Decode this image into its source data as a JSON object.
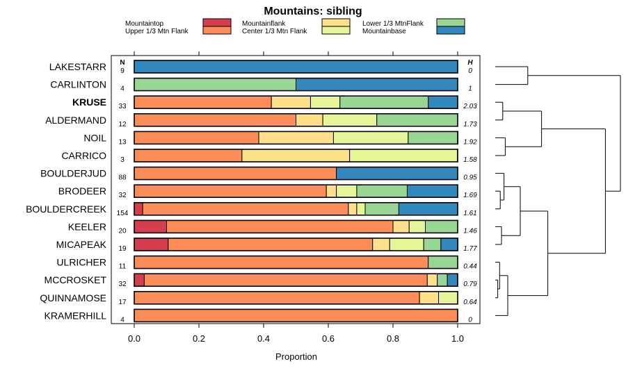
{
  "chart_data": {
    "type": "bar",
    "orientation": "horizontal",
    "stacked": true,
    "title": "Mountains: sibling",
    "xlabel": "Proportion",
    "ylabel": "",
    "xlim": [
      0,
      1
    ],
    "xticks": [
      "0.0",
      "0.2",
      "0.4",
      "0.6",
      "0.8",
      "1.0"
    ],
    "n_header": "N",
    "h_header": "H",
    "legend": [
      {
        "name": "Mountaintop",
        "color": "#d53e4f"
      },
      {
        "name": "Upper 1/3 Mtn Flank",
        "color": "#fc8d59"
      },
      {
        "name": "Mountainflank",
        "color": "#fee08b"
      },
      {
        "name": "Center 1/3 Mtn Flank",
        "color": "#e6f598"
      },
      {
        "name": "Lower 1/3 MtnFlank",
        "color": "#99d594"
      },
      {
        "name": "Mountainbase",
        "color": "#3288bd"
      }
    ],
    "rows": [
      {
        "label": "LAKESTARR",
        "bold": false,
        "n": "9",
        "h": "0",
        "values": [
          0,
          0,
          0,
          0,
          0,
          1.0
        ]
      },
      {
        "label": "CARLINTON",
        "bold": false,
        "n": "4",
        "h": "1",
        "values": [
          0,
          0,
          0,
          0,
          0.5,
          0.5
        ]
      },
      {
        "label": "KRUSE",
        "bold": true,
        "n": "33",
        "h": "2.03",
        "values": [
          0,
          0.424,
          0.121,
          0.091,
          0.273,
          0.091
        ]
      },
      {
        "label": "ALDERMAND",
        "bold": false,
        "n": "12",
        "h": "1.73",
        "values": [
          0,
          0.5,
          0.083,
          0.167,
          0.25,
          0
        ]
      },
      {
        "label": "NOIL",
        "bold": false,
        "n": "13",
        "h": "1.92",
        "values": [
          0,
          0.385,
          0.231,
          0.231,
          0.154,
          0
        ]
      },
      {
        "label": "CARRICO",
        "bold": false,
        "n": "3",
        "h": "1.58",
        "values": [
          0,
          0.333,
          0.333,
          0.333,
          0,
          0
        ]
      },
      {
        "label": "BOULDERJUD",
        "bold": false,
        "n": "88",
        "h": "0.95",
        "values": [
          0,
          0.625,
          0,
          0,
          0,
          0.375
        ]
      },
      {
        "label": "BRODEER",
        "bold": false,
        "n": "32",
        "h": "1.69",
        "values": [
          0,
          0.594,
          0.031,
          0.063,
          0.156,
          0.156
        ]
      },
      {
        "label": "BOULDERCREEK",
        "bold": false,
        "n": "154",
        "h": "1.61",
        "values": [
          0.026,
          0.636,
          0.026,
          0.026,
          0.104,
          0.182
        ]
      },
      {
        "label": "KEELER",
        "bold": false,
        "n": "20",
        "h": "1.46",
        "values": [
          0.1,
          0.7,
          0.05,
          0.05,
          0.1,
          0
        ]
      },
      {
        "label": "MICAPEAK",
        "bold": false,
        "n": "19",
        "h": "1.77",
        "values": [
          0.105,
          0.632,
          0.053,
          0.105,
          0.053,
          0.053
        ]
      },
      {
        "label": "ULRICHER",
        "bold": false,
        "n": "11",
        "h": "0.44",
        "values": [
          0,
          0.909,
          0,
          0,
          0.091,
          0
        ]
      },
      {
        "label": "MCCROSKET",
        "bold": false,
        "n": "32",
        "h": "0.79",
        "values": [
          0.031,
          0.875,
          0.031,
          0,
          0.031,
          0.031
        ]
      },
      {
        "label": "QUINNAMOSE",
        "bold": false,
        "n": "17",
        "h": "0.64",
        "values": [
          0,
          0.882,
          0.059,
          0.059,
          0,
          0
        ]
      },
      {
        "label": "KRAMERHILL",
        "bold": false,
        "n": "4",
        "h": "0",
        "values": [
          0,
          1.0,
          0,
          0,
          0,
          0
        ]
      }
    ],
    "dendrogram": {
      "max_height": 1.0,
      "children": [
        {
          "children": [
            {
              "leaf": 0,
              "h": 0
            },
            {
              "leaf": 1,
              "h": 0
            }
          ],
          "h": 0.26
        },
        {
          "h": 0.88,
          "children": [
            {
              "h": 0.37,
              "children": [
                {
                  "h": 0.06,
                  "children": [
                    {
                      "leaf": 2
                    },
                    {
                      "leaf": 3
                    }
                  ]
                },
                {
                  "h": 0.08,
                  "children": [
                    {
                      "leaf": 4
                    },
                    {
                      "leaf": 5
                    }
                  ]
                }
              ]
            },
            {
              "h": 0.42,
              "children": [
                {
                  "h": 0.2,
                  "children": [
                    {
                      "h": 0.07,
                      "children": [
                        {
                          "leaf": 6
                        },
                        {
                          "h": 0.04,
                          "children": [
                            {
                              "leaf": 7
                            },
                            {
                              "leaf": 8
                            }
                          ]
                        }
                      ]
                    },
                    {
                      "h": 0.05,
                      "children": [
                        {
                          "leaf": 9
                        },
                        {
                          "leaf": 10
                        }
                      ]
                    }
                  ]
                },
                {
                  "h": 0.1,
                  "children": [
                    {
                      "h": 0.035,
                      "children": [
                        {
                          "leaf": 11
                        },
                        {
                          "h": 0.02,
                          "children": [
                            {
                              "leaf": 12
                            },
                            {
                              "leaf": 13
                            }
                          ]
                        }
                      ]
                    },
                    {
                      "leaf": 14
                    }
                  ]
                }
              ]
            }
          ]
        }
      ]
    }
  }
}
